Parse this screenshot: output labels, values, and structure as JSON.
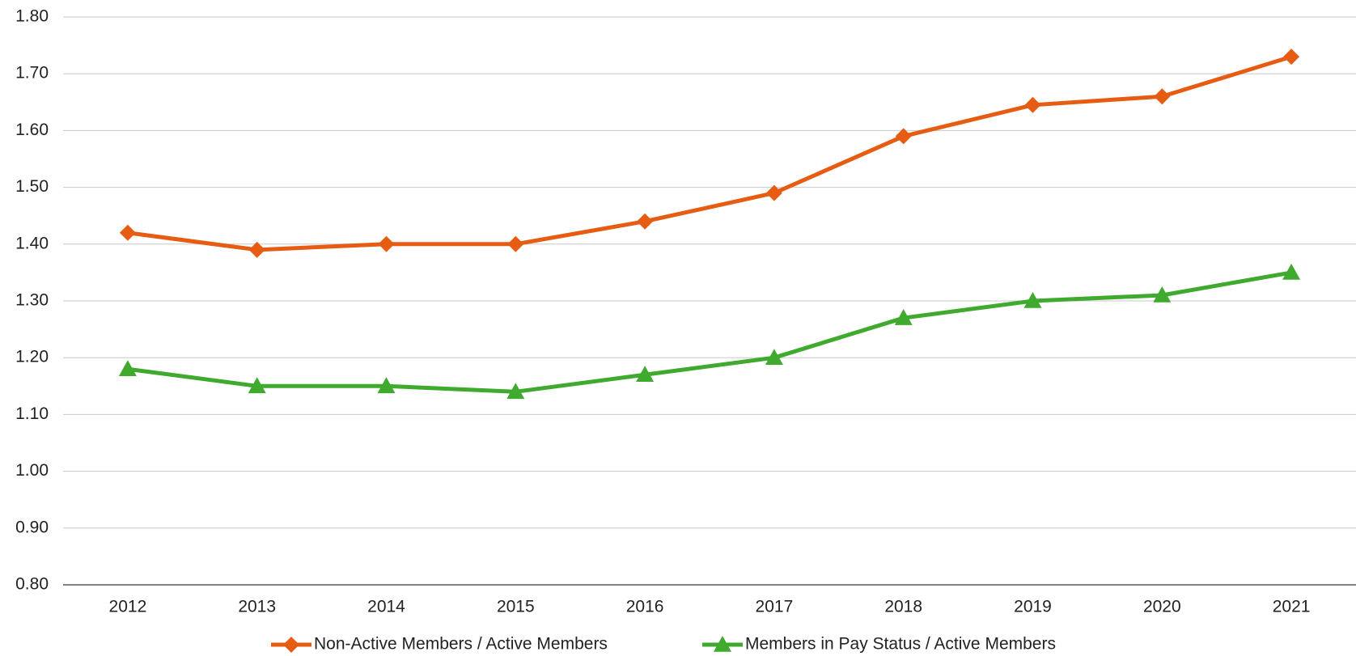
{
  "chart_data": {
    "type": "line",
    "categories": [
      "2012",
      "2013",
      "2014",
      "2015",
      "2016",
      "2017",
      "2018",
      "2019",
      "2020",
      "2021"
    ],
    "series": [
      {
        "name": "Non-Active Members / Active Members",
        "color": "#e65c12",
        "marker": "diamond",
        "values": [
          1.42,
          1.39,
          1.4,
          1.4,
          1.44,
          1.49,
          1.59,
          1.645,
          1.66,
          1.73
        ]
      },
      {
        "name": "Members in Pay Status / Active Members",
        "color": "#3faa2e",
        "marker": "triangle",
        "values": [
          1.18,
          1.15,
          1.15,
          1.14,
          1.17,
          1.2,
          1.27,
          1.3,
          1.31,
          1.35
        ]
      }
    ],
    "ylim": [
      0.8,
      1.8
    ],
    "yticks": [
      {
        "value": 0.8,
        "label": "0.80"
      },
      {
        "value": 0.9,
        "label": "0.90"
      },
      {
        "value": 1.0,
        "label": "1.00"
      },
      {
        "value": 1.1,
        "label": "1.10"
      },
      {
        "value": 1.2,
        "label": "1.20"
      },
      {
        "value": 1.3,
        "label": "1.30"
      },
      {
        "value": 1.4,
        "label": "1.40"
      },
      {
        "value": 1.5,
        "label": "1.50"
      },
      {
        "value": 1.6,
        "label": "1.60"
      },
      {
        "value": 1.7,
        "label": "1.70"
      },
      {
        "value": 1.8,
        "label": "1.80"
      }
    ],
    "grid": true,
    "legend": "bottom"
  }
}
